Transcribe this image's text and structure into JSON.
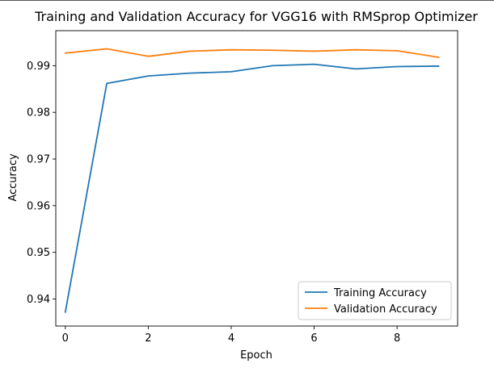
{
  "chart_data": {
    "type": "line",
    "title": "Training and Validation Accuracy for VGG16 with RMSprop Optimizer",
    "xlabel": "Epoch",
    "ylabel": "Accuracy",
    "x": [
      0,
      1,
      2,
      3,
      4,
      5,
      6,
      7,
      8,
      9
    ],
    "xlim": [
      -0.23,
      9.46
    ],
    "ylim": [
      0.9342,
      0.9975
    ],
    "xticks": [
      0,
      2,
      4,
      6,
      8
    ],
    "xtick_labels": [
      "0",
      "2",
      "4",
      "6",
      "8"
    ],
    "yticks": [
      0.94,
      0.95,
      0.96,
      0.97,
      0.98,
      0.99
    ],
    "ytick_labels": [
      "0.94",
      "0.95",
      "0.96",
      "0.97",
      "0.98",
      "0.99"
    ],
    "grid": false,
    "legend_position": "lower-right",
    "series": [
      {
        "name": "Training Accuracy",
        "color": "#1f77b4",
        "values": [
          0.9372,
          0.9862,
          0.9878,
          0.9884,
          0.9887,
          0.99,
          0.9903,
          0.9893,
          0.9898,
          0.9899
        ]
      },
      {
        "name": "Validation Accuracy",
        "color": "#ff7f0e",
        "values": [
          0.9927,
          0.9936,
          0.992,
          0.9931,
          0.9934,
          0.9933,
          0.9931,
          0.9934,
          0.9932,
          0.9918
        ]
      }
    ]
  }
}
